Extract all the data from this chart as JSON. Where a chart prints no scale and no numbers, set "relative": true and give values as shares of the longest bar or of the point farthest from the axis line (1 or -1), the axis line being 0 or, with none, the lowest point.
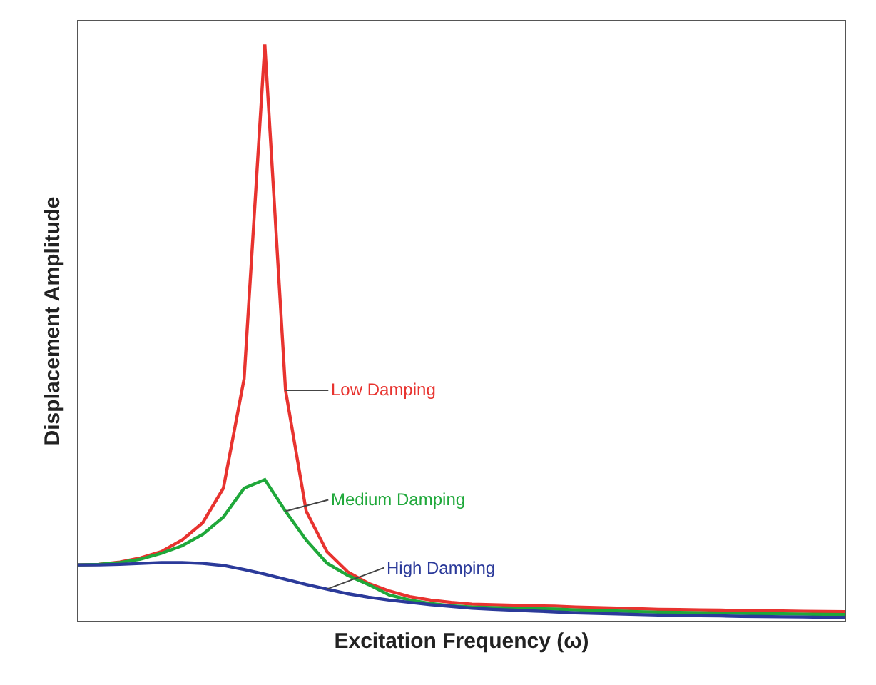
{
  "chart_data": {
    "type": "line",
    "relative": true,
    "tick_labels": false,
    "xlabel": "Excitation Frequency (ω)",
    "ylabel": "Displacement Amplitude",
    "categories": [
      null,
      null,
      null,
      null,
      null,
      null,
      null,
      null,
      null,
      null,
      null,
      null,
      null,
      null,
      null,
      null,
      null,
      null,
      null,
      null,
      null,
      null,
      null,
      null,
      null,
      null,
      null,
      null,
      null,
      null,
      null,
      null,
      null,
      null,
      null,
      null,
      null,
      null
    ],
    "series": [
      {
        "name": "Low Damping",
        "color": "#e8332f",
        "values": [
          0.097,
          0.098,
          0.102,
          0.109,
          0.12,
          0.14,
          0.17,
          0.23,
          0.42,
          1.0,
          0.4,
          0.19,
          0.12,
          0.085,
          0.065,
          0.052,
          0.042,
          0.036,
          0.032,
          0.029,
          0.028,
          0.027,
          0.026,
          0.0255,
          0.024,
          0.023,
          0.022,
          0.021,
          0.02,
          0.0195,
          0.019,
          0.0185,
          0.0178,
          0.0174,
          0.017,
          0.0166,
          0.0161,
          0.016
        ]
      },
      {
        "name": "Medium Damping",
        "color": "#1fa83a",
        "values": [
          0.097,
          0.098,
          0.101,
          0.107,
          0.117,
          0.13,
          0.15,
          0.18,
          0.23,
          0.245,
          0.19,
          0.14,
          0.1,
          0.079,
          0.063,
          0.045,
          0.036,
          0.03,
          0.026,
          0.024,
          0.023,
          0.022,
          0.021,
          0.0205,
          0.019,
          0.018,
          0.017,
          0.016,
          0.015,
          0.0145,
          0.014,
          0.0135,
          0.0128,
          0.0124,
          0.012,
          0.0116,
          0.0111,
          0.011
        ]
      },
      {
        "name": "High Damping",
        "color": "#2b3a9a",
        "values": [
          0.097,
          0.097,
          0.098,
          0.0995,
          0.101,
          0.101,
          0.0995,
          0.096,
          0.089,
          0.081,
          0.072,
          0.063,
          0.055,
          0.047,
          0.041,
          0.036,
          0.032,
          0.028,
          0.025,
          0.022,
          0.02,
          0.0185,
          0.017,
          0.0155,
          0.014,
          0.013,
          0.012,
          0.011,
          0.01,
          0.0095,
          0.009,
          0.0085,
          0.0078,
          0.0074,
          0.007,
          0.0066,
          0.0061,
          0.006
        ]
      }
    ]
  }
}
